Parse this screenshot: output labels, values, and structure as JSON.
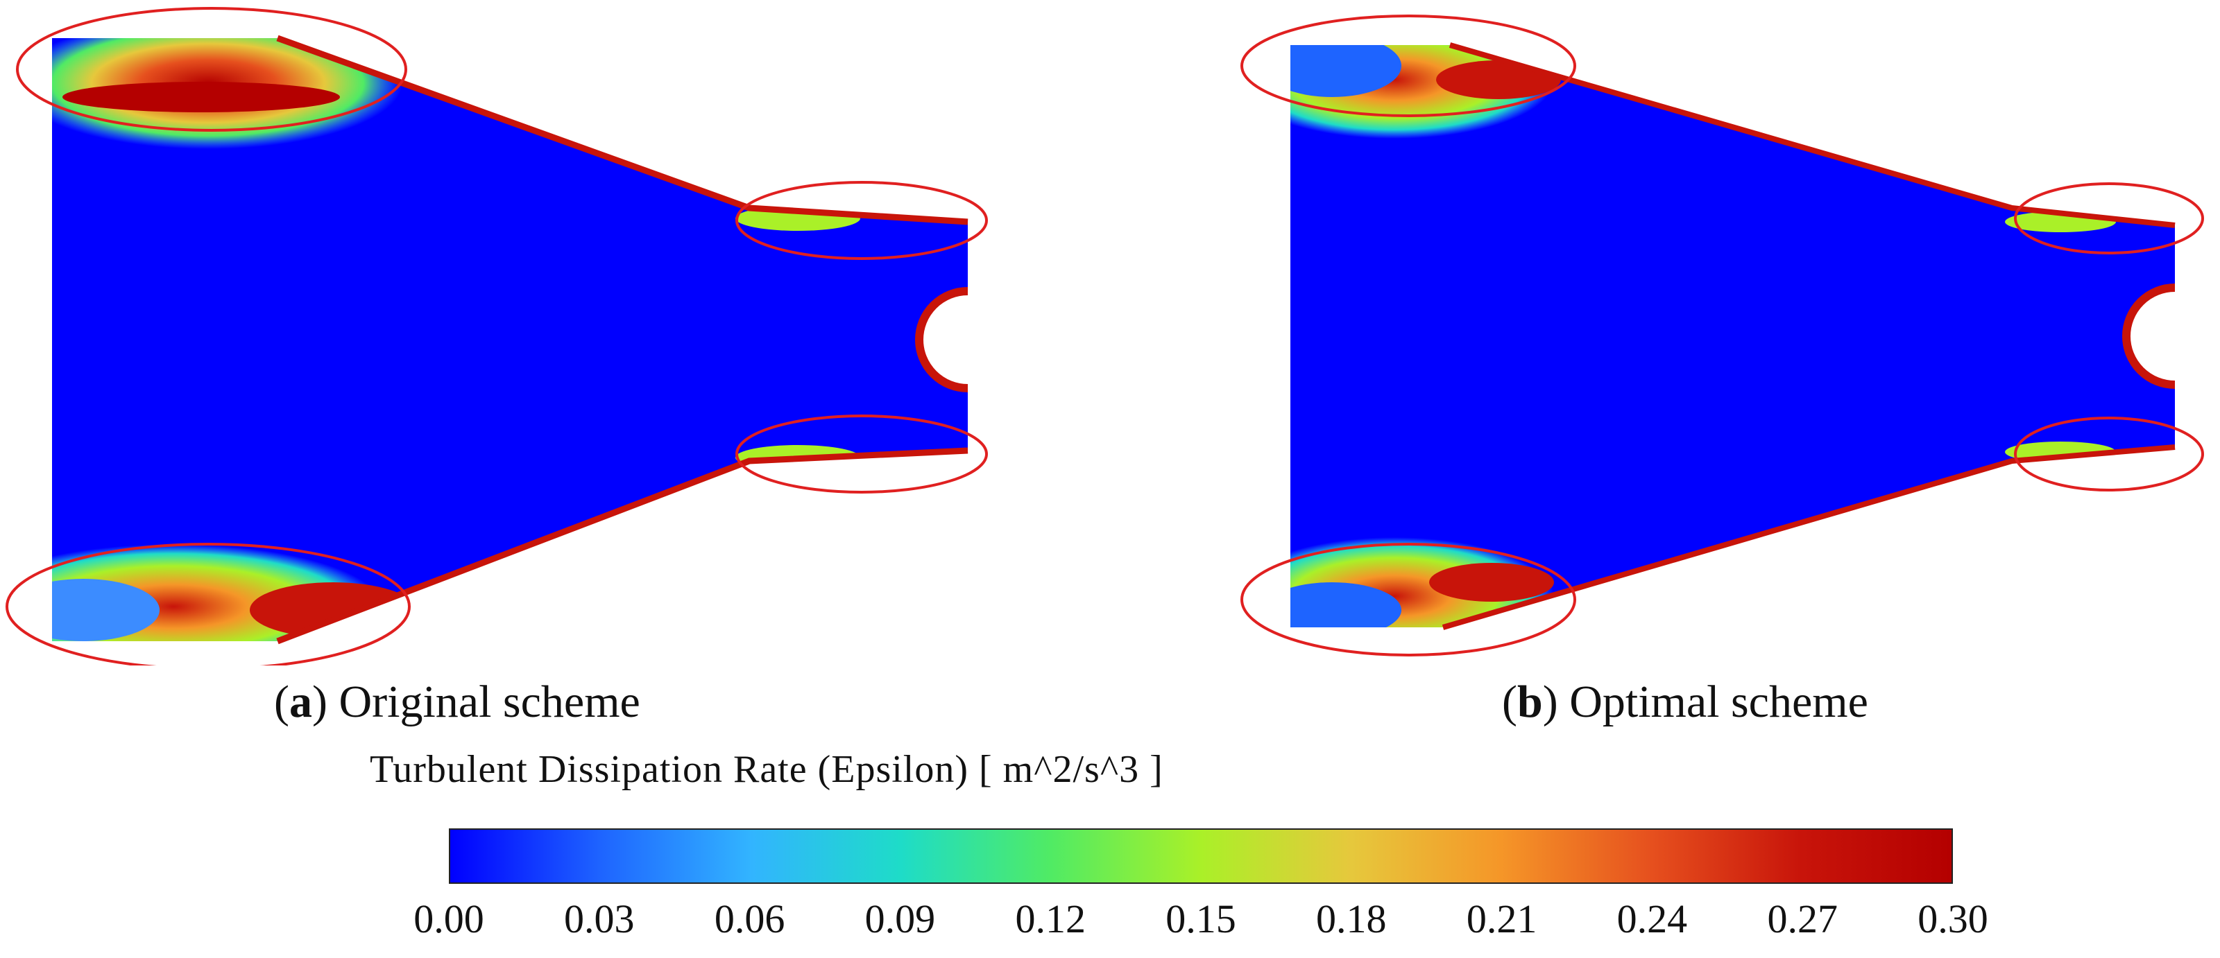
{
  "panels": [
    {
      "id": "a",
      "letter": "a",
      "caption": "Original scheme"
    },
    {
      "id": "b",
      "letter": "b",
      "caption": "Optimal scheme"
    }
  ],
  "colorbar": {
    "title": "Turbulent Dissipation Rate (Epsilon) [ m^2/s^3 ]",
    "min": 0.0,
    "max": 0.3,
    "ticks": [
      "0.00",
      "0.03",
      "0.06",
      "0.09",
      "0.12",
      "0.15",
      "0.18",
      "0.21",
      "0.24",
      "0.27",
      "0.30"
    ],
    "colormap": [
      "#0000ff",
      "#1e64ff",
      "#32b4ff",
      "#1edcc8",
      "#50eb64",
      "#aaf028",
      "#e6c83c",
      "#f59628",
      "#e6501e",
      "#c8140a",
      "#b40000"
    ]
  },
  "annotation_color": "#e02020"
}
